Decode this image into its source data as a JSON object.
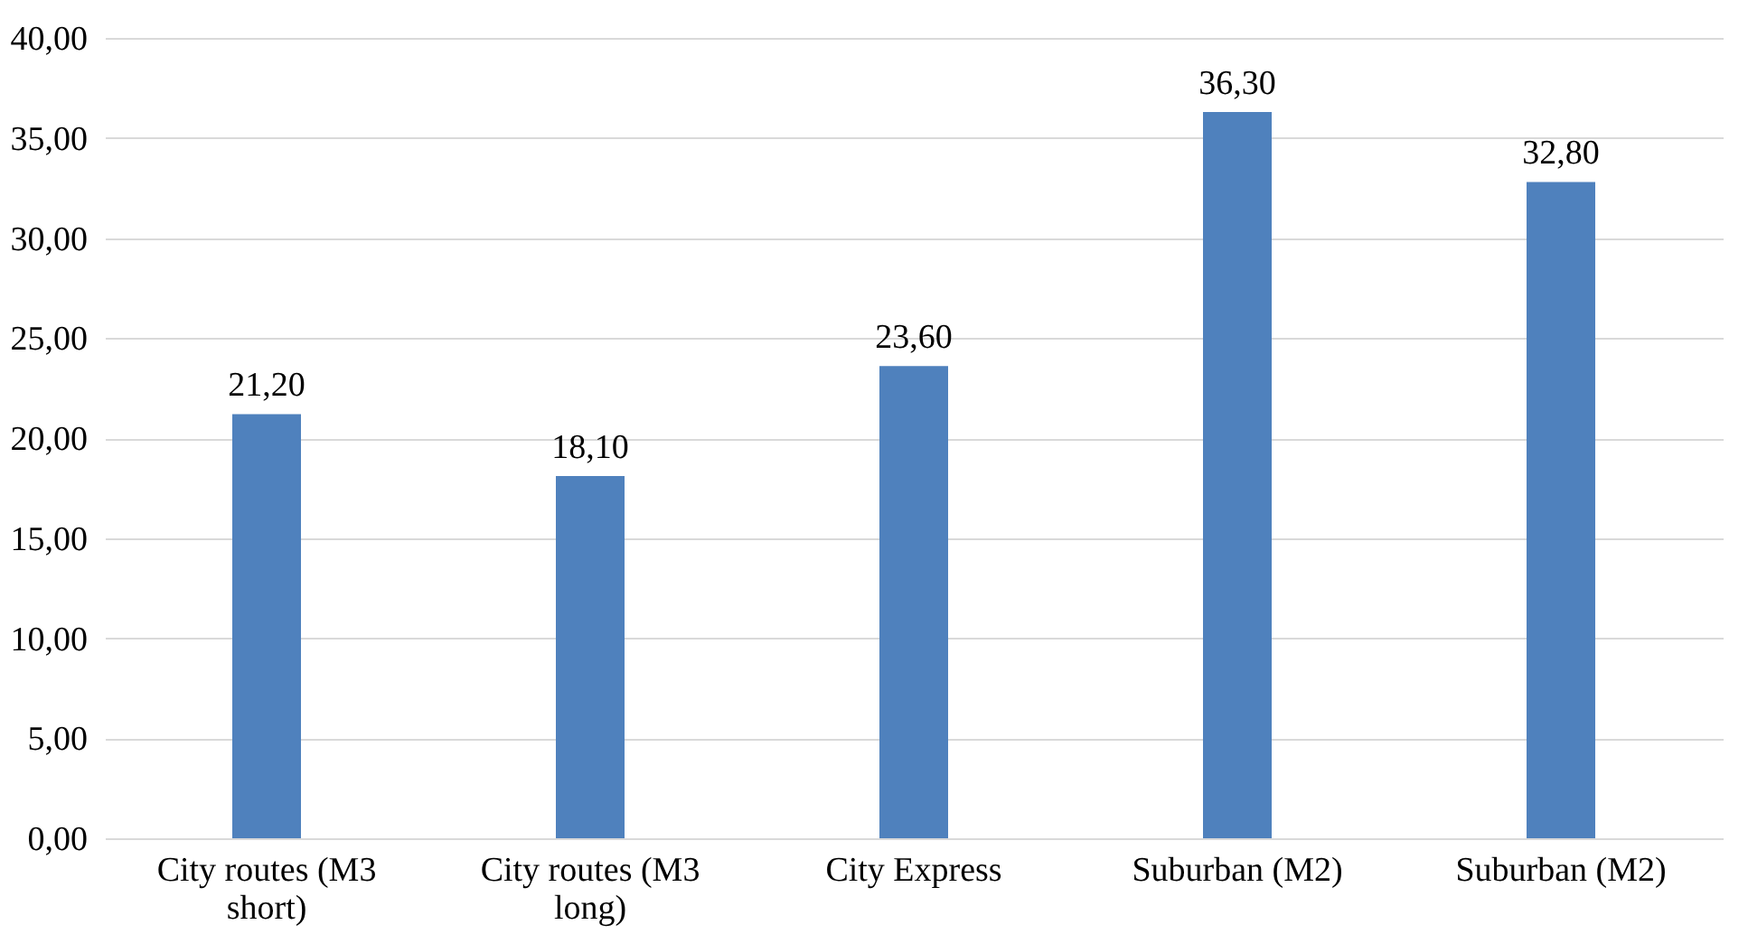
{
  "chart_data": {
    "type": "bar",
    "categories": [
      "City routes (M3 short)",
      "City routes (M3 long)",
      "City Express",
      "Suburban (M2)",
      "Suburban (M2)"
    ],
    "values": [
      21.2,
      18.1,
      23.6,
      36.3,
      32.8
    ],
    "value_labels": [
      "21,20",
      "18,10",
      "23,60",
      "36,30",
      "32,80"
    ],
    "color": "#4f81bd",
    "ylim": [
      0,
      40
    ],
    "yticks": [
      {
        "value": 0,
        "label": "0,00"
      },
      {
        "value": 5,
        "label": "5,00"
      },
      {
        "value": 10,
        "label": "10,00"
      },
      {
        "value": 15,
        "label": "15,00"
      },
      {
        "value": 20,
        "label": "20,00"
      },
      {
        "value": 25,
        "label": "25,00"
      },
      {
        "value": 30,
        "label": "30,00"
      },
      {
        "value": 35,
        "label": "35,00"
      },
      {
        "value": 40,
        "label": "40,00"
      }
    ],
    "grid": "y"
  }
}
